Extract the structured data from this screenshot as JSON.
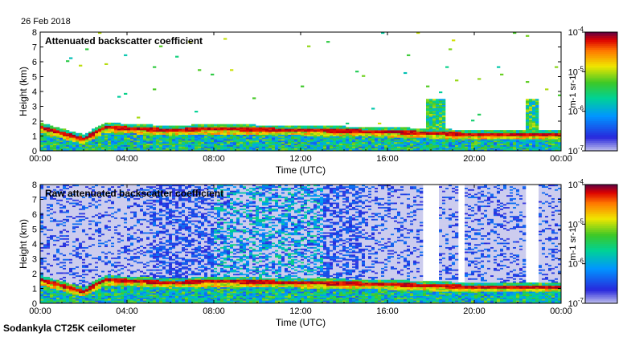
{
  "date_label": "26 Feb 2018",
  "footer_label": "Sodankyla CT25K ceilometer",
  "chart_data": [
    {
      "type": "heatmap",
      "title": "Attenuated backscatter coefficient",
      "xlabel": "Time (UTC)",
      "ylabel": "Height (km)",
      "xlim": [
        "00:00",
        "00:00"
      ],
      "ylim": [
        0,
        8
      ],
      "x_ticks": [
        "00:00",
        "04:00",
        "08:00",
        "12:00",
        "16:00",
        "20:00",
        "00:00"
      ],
      "y_ticks": [
        "0",
        "1",
        "2",
        "3",
        "4",
        "5",
        "6",
        "7",
        "8"
      ],
      "colorbar": {
        "scale": "log",
        "range": [
          1e-07,
          0.0001
        ],
        "tick_labels": [
          "10-4",
          "10-5",
          "10-6",
          "10-7"
        ],
        "unit": "m-1 sr-1"
      },
      "cloud_base_height_km_approx": [
        {
          "time": "00:00",
          "height": 1.6
        },
        {
          "time": "02:00",
          "height": 0.8
        },
        {
          "time": "03:00",
          "height": 1.6
        },
        {
          "time": "06:00",
          "height": 1.4
        },
        {
          "time": "08:00",
          "height": 1.5
        },
        {
          "time": "12:00",
          "height": 1.4
        },
        {
          "time": "16:00",
          "height": 1.3
        },
        {
          "time": "20:00",
          "height": 1.1
        },
        {
          "time": "23:00",
          "height": 1.1
        }
      ]
    },
    {
      "type": "heatmap",
      "title": "Raw attenuated backscatter coefficient",
      "xlabel": "Time (UTC)",
      "ylabel": "Height (km)",
      "xlim": [
        "00:00",
        "00:00"
      ],
      "ylim": [
        0,
        8
      ],
      "x_ticks": [
        "00:00",
        "04:00",
        "08:00",
        "12:00",
        "16:00",
        "20:00",
        "00:00"
      ],
      "y_ticks": [
        "0",
        "1",
        "2",
        "3",
        "4",
        "5",
        "6",
        "7",
        "8"
      ],
      "colorbar": {
        "scale": "log",
        "range": [
          1e-07,
          0.0001
        ],
        "tick_labels": [
          "10-4",
          "10-5",
          "10-6",
          "10-7"
        ],
        "unit": "m-1 sr-1"
      }
    }
  ]
}
